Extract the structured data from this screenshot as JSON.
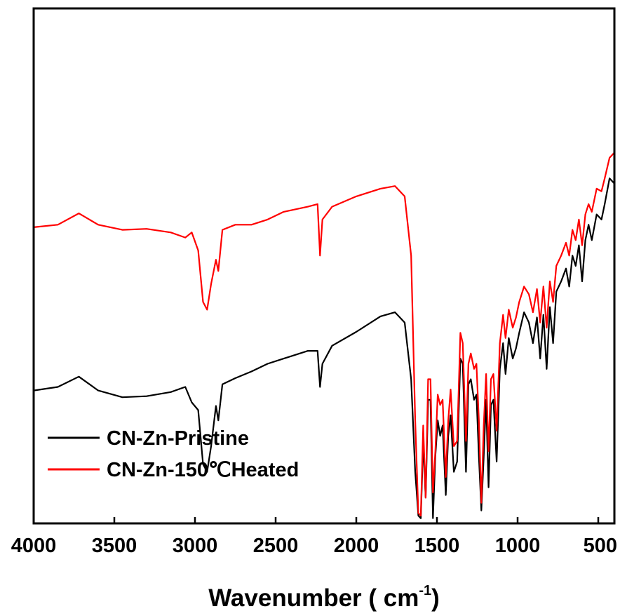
{
  "chart_data": {
    "type": "line",
    "title": "",
    "xlabel": "Wavenumber ( cm",
    "xlabel_superscript": "-1",
    "xlabel_suffix": ")",
    "ylabel": "",
    "xlim": [
      4000,
      400
    ],
    "x_reversed": true,
    "y_axis_labels": false,
    "grid": false,
    "legend_position": "bottom-left",
    "x_ticks": [
      "4000",
      "3500",
      "3000",
      "2500",
      "2000",
      "1500",
      "1000",
      "500"
    ],
    "x_tick_values": [
      4000,
      3500,
      3000,
      2500,
      2000,
      1500,
      1000,
      500
    ],
    "series": [
      {
        "name": "CN-Zn-Pristine",
        "color": "#000000",
        "points": [
          [
            4000,
            0.742
          ],
          [
            3850,
            0.735
          ],
          [
            3720,
            0.715
          ],
          [
            3600,
            0.742
          ],
          [
            3450,
            0.755
          ],
          [
            3300,
            0.753
          ],
          [
            3150,
            0.745
          ],
          [
            3060,
            0.735
          ],
          [
            3020,
            0.765
          ],
          [
            2980,
            0.78
          ],
          [
            2950,
            0.885
          ],
          [
            2925,
            0.9
          ],
          [
            2900,
            0.85
          ],
          [
            2870,
            0.772
          ],
          [
            2855,
            0.8
          ],
          [
            2830,
            0.73
          ],
          [
            2750,
            0.718
          ],
          [
            2650,
            0.705
          ],
          [
            2550,
            0.69
          ],
          [
            2450,
            0.68
          ],
          [
            2300,
            0.665
          ],
          [
            2240,
            0.665
          ],
          [
            2225,
            0.735
          ],
          [
            2210,
            0.69
          ],
          [
            2150,
            0.655
          ],
          [
            2000,
            0.628
          ],
          [
            1850,
            0.598
          ],
          [
            1760,
            0.59
          ],
          [
            1700,
            0.61
          ],
          [
            1660,
            0.72
          ],
          [
            1635,
            0.9
          ],
          [
            1615,
            0.985
          ],
          [
            1600,
            0.99
          ],
          [
            1585,
            0.84
          ],
          [
            1570,
            0.95
          ],
          [
            1555,
            0.76
          ],
          [
            1540,
            0.76
          ],
          [
            1525,
            0.99
          ],
          [
            1510,
            0.87
          ],
          [
            1495,
            0.8
          ],
          [
            1480,
            0.83
          ],
          [
            1465,
            0.81
          ],
          [
            1445,
            0.945
          ],
          [
            1430,
            0.83
          ],
          [
            1415,
            0.79
          ],
          [
            1395,
            0.9
          ],
          [
            1375,
            0.88
          ],
          [
            1355,
            0.68
          ],
          [
            1340,
            0.69
          ],
          [
            1320,
            0.9
          ],
          [
            1305,
            0.73
          ],
          [
            1290,
            0.72
          ],
          [
            1270,
            0.76
          ],
          [
            1255,
            0.75
          ],
          [
            1240,
            0.87
          ],
          [
            1225,
            0.975
          ],
          [
            1210,
            0.87
          ],
          [
            1195,
            0.76
          ],
          [
            1180,
            0.93
          ],
          [
            1165,
            0.77
          ],
          [
            1150,
            0.76
          ],
          [
            1130,
            0.88
          ],
          [
            1110,
            0.7
          ],
          [
            1090,
            0.65
          ],
          [
            1075,
            0.71
          ],
          [
            1055,
            0.64
          ],
          [
            1030,
            0.68
          ],
          [
            1010,
            0.66
          ],
          [
            990,
            0.63
          ],
          [
            960,
            0.59
          ],
          [
            930,
            0.61
          ],
          [
            905,
            0.65
          ],
          [
            880,
            0.6
          ],
          [
            860,
            0.68
          ],
          [
            840,
            0.595
          ],
          [
            820,
            0.7
          ],
          [
            800,
            0.58
          ],
          [
            780,
            0.65
          ],
          [
            760,
            0.55
          ],
          [
            730,
            0.53
          ],
          [
            700,
            0.505
          ],
          [
            680,
            0.54
          ],
          [
            660,
            0.48
          ],
          [
            640,
            0.5
          ],
          [
            620,
            0.46
          ],
          [
            600,
            0.53
          ],
          [
            580,
            0.45
          ],
          [
            560,
            0.42
          ],
          [
            540,
            0.45
          ],
          [
            510,
            0.4
          ],
          [
            480,
            0.41
          ],
          [
            460,
            0.38
          ],
          [
            430,
            0.33
          ],
          [
            400,
            0.34
          ]
        ]
      },
      {
        "name": "CN-Zn-150℃Heated",
        "color": "#ff0000",
        "points": [
          [
            4000,
            0.425
          ],
          [
            3850,
            0.42
          ],
          [
            3720,
            0.398
          ],
          [
            3600,
            0.42
          ],
          [
            3450,
            0.43
          ],
          [
            3300,
            0.428
          ],
          [
            3150,
            0.435
          ],
          [
            3060,
            0.445
          ],
          [
            3020,
            0.435
          ],
          [
            2980,
            0.47
          ],
          [
            2950,
            0.57
          ],
          [
            2925,
            0.585
          ],
          [
            2900,
            0.535
          ],
          [
            2870,
            0.488
          ],
          [
            2855,
            0.51
          ],
          [
            2830,
            0.43
          ],
          [
            2750,
            0.42
          ],
          [
            2650,
            0.42
          ],
          [
            2550,
            0.41
          ],
          [
            2450,
            0.395
          ],
          [
            2300,
            0.385
          ],
          [
            2240,
            0.38
          ],
          [
            2225,
            0.48
          ],
          [
            2210,
            0.41
          ],
          [
            2150,
            0.385
          ],
          [
            2000,
            0.365
          ],
          [
            1850,
            0.35
          ],
          [
            1760,
            0.345
          ],
          [
            1700,
            0.365
          ],
          [
            1660,
            0.48
          ],
          [
            1635,
            0.8
          ],
          [
            1615,
            0.98
          ],
          [
            1600,
            0.985
          ],
          [
            1585,
            0.81
          ],
          [
            1570,
            0.95
          ],
          [
            1555,
            0.72
          ],
          [
            1540,
            0.72
          ],
          [
            1525,
            0.94
          ],
          [
            1510,
            0.86
          ],
          [
            1495,
            0.75
          ],
          [
            1480,
            0.77
          ],
          [
            1465,
            0.76
          ],
          [
            1445,
            0.91
          ],
          [
            1430,
            0.8
          ],
          [
            1415,
            0.74
          ],
          [
            1395,
            0.85
          ],
          [
            1375,
            0.84
          ],
          [
            1355,
            0.63
          ],
          [
            1340,
            0.65
          ],
          [
            1320,
            0.84
          ],
          [
            1305,
            0.69
          ],
          [
            1290,
            0.67
          ],
          [
            1270,
            0.7
          ],
          [
            1255,
            0.69
          ],
          [
            1240,
            0.8
          ],
          [
            1225,
            0.96
          ],
          [
            1210,
            0.81
          ],
          [
            1195,
            0.71
          ],
          [
            1180,
            0.86
          ],
          [
            1165,
            0.72
          ],
          [
            1150,
            0.71
          ],
          [
            1130,
            0.82
          ],
          [
            1110,
            0.65
          ],
          [
            1090,
            0.595
          ],
          [
            1075,
            0.64
          ],
          [
            1055,
            0.585
          ],
          [
            1030,
            0.62
          ],
          [
            1010,
            0.6
          ],
          [
            990,
            0.57
          ],
          [
            960,
            0.54
          ],
          [
            930,
            0.555
          ],
          [
            905,
            0.59
          ],
          [
            880,
            0.545
          ],
          [
            860,
            0.61
          ],
          [
            840,
            0.54
          ],
          [
            820,
            0.62
          ],
          [
            800,
            0.53
          ],
          [
            780,
            0.57
          ],
          [
            760,
            0.5
          ],
          [
            730,
            0.48
          ],
          [
            700,
            0.455
          ],
          [
            680,
            0.48
          ],
          [
            660,
            0.43
          ],
          [
            640,
            0.45
          ],
          [
            620,
            0.41
          ],
          [
            600,
            0.46
          ],
          [
            580,
            0.4
          ],
          [
            560,
            0.38
          ],
          [
            540,
            0.395
          ],
          [
            510,
            0.35
          ],
          [
            480,
            0.355
          ],
          [
            460,
            0.33
          ],
          [
            430,
            0.29
          ],
          [
            400,
            0.28
          ]
        ]
      }
    ]
  }
}
